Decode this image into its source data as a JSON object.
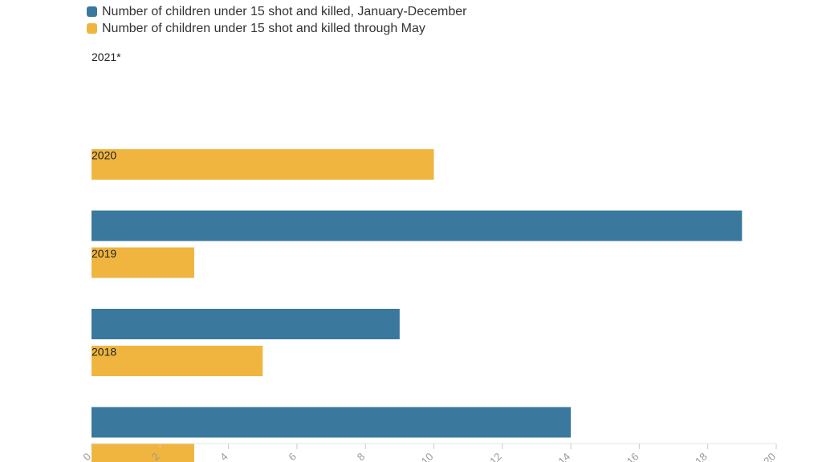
{
  "chart_data": {
    "type": "bar",
    "orientation": "horizontal",
    "categories": [
      "2021*",
      "2020",
      "2019",
      "2018"
    ],
    "series": [
      {
        "name": "Number of children under 15 shot and killed, January-December",
        "color": "#3a789e",
        "values": [
          null,
          19,
          9,
          14
        ]
      },
      {
        "name": "Number of children under 15 shot and killed through May",
        "color": "#efb53f",
        "values": [
          10,
          3,
          5,
          3
        ]
      }
    ],
    "x_ticks": [
      "0",
      "2",
      "4",
      "6",
      "8",
      "10",
      "12",
      "14",
      "16",
      "18",
      "20"
    ],
    "xlim": [
      0,
      20
    ],
    "legend_position": "top-left",
    "grid": false
  }
}
